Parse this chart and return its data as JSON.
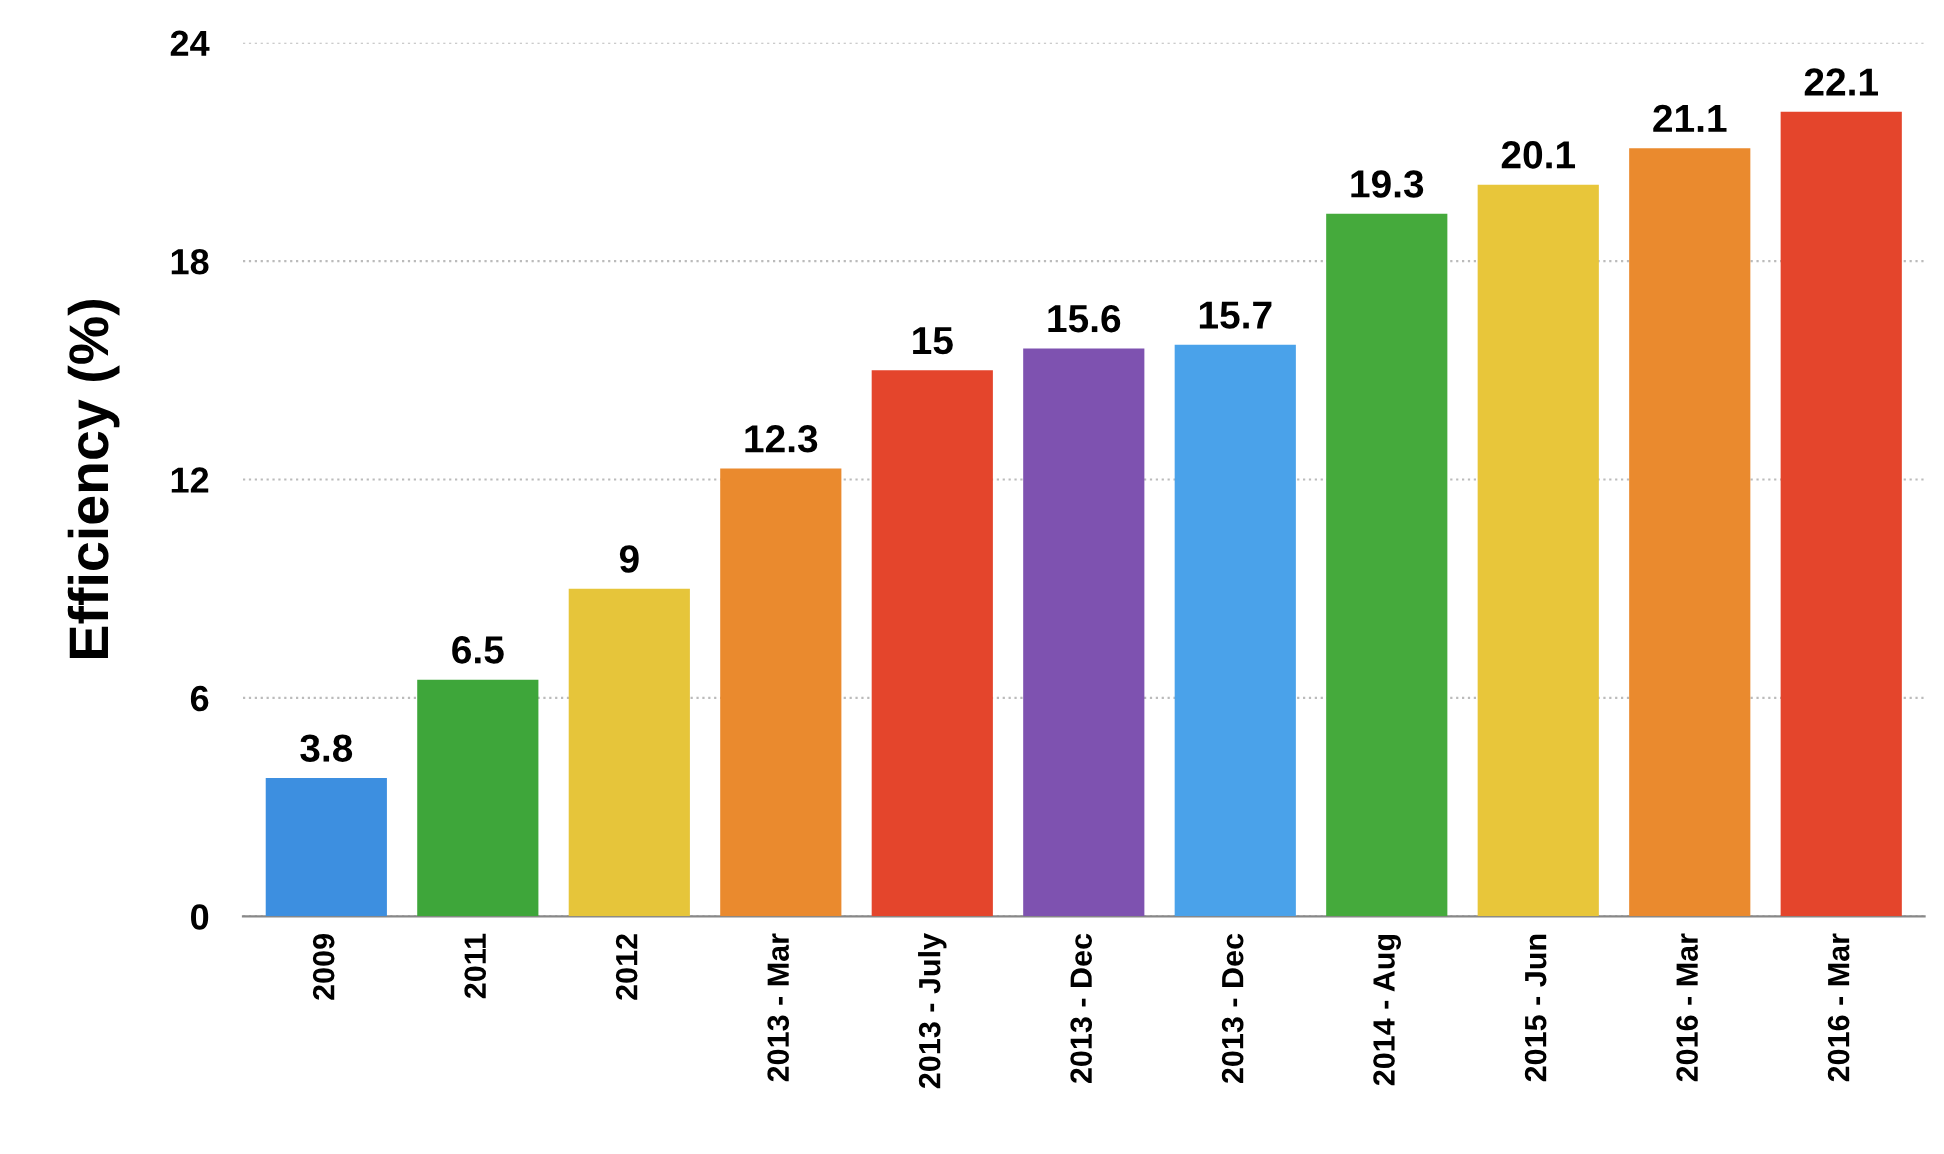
{
  "chart_data": {
    "type": "bar",
    "ylabel": "Efficiency (%)",
    "categories": [
      "2009",
      "2011",
      "2012",
      "2013 - Mar",
      "2013 - July",
      "2013 - Dec",
      "2013 - Dec",
      "2014 - Aug",
      "2015 - Jun",
      "2016 - Mar",
      "2016 - Mar"
    ],
    "values": [
      3.8,
      6.5,
      9,
      12.3,
      15,
      15.6,
      15.7,
      19.3,
      20.1,
      21.1,
      22.1
    ],
    "colors": [
      "#3d8fe0",
      "#3ea63a",
      "#e6c53a",
      "#ea8a2e",
      "#e4452c",
      "#7e52b0",
      "#4aa2ea",
      "#45aa3c",
      "#e8c63a",
      "#ea8a2e",
      "#e4452c"
    ],
    "ylim": [
      0,
      24
    ],
    "yticks": [
      0,
      6,
      12,
      18,
      24
    ],
    "grid": "y",
    "data_labels": true
  }
}
